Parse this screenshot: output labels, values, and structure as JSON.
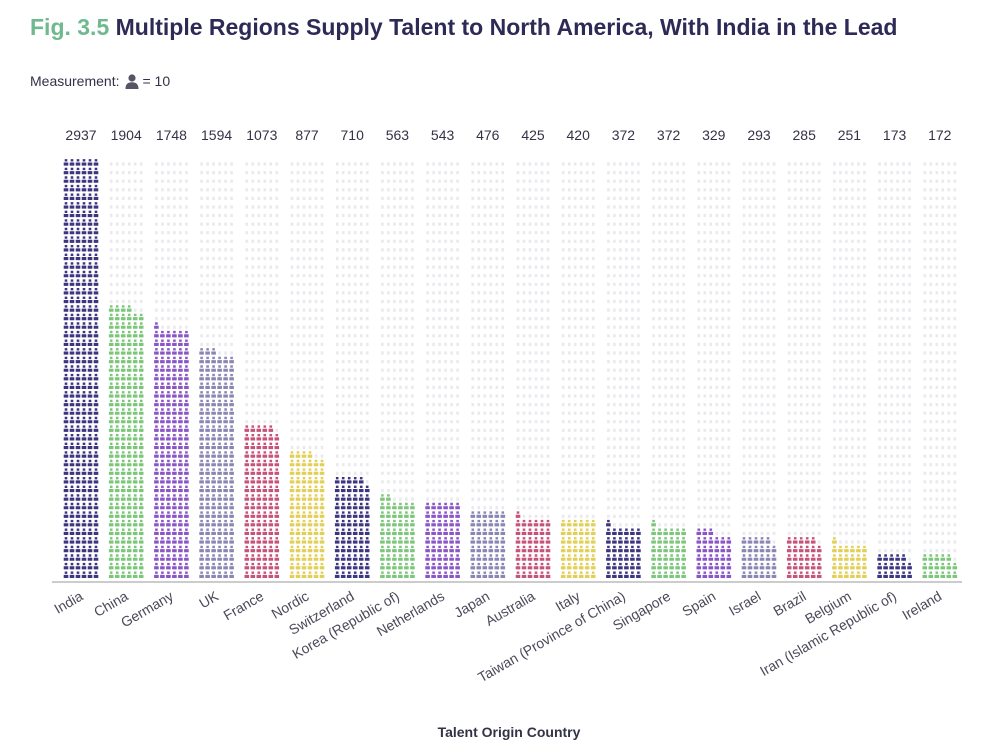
{
  "title": {
    "figure_label": "Fig. 3.5",
    "text": "Multiple Regions Supply Talent to North America, With India in the Lead"
  },
  "measurement": {
    "label": "Measurement:",
    "icon": "person-icon",
    "unit": "= 10"
  },
  "colors": {
    "india": "#3b3680",
    "china": "#7cc67a",
    "germany": "#8a55c7",
    "uk": "#8a86b3",
    "france": "#c6547a",
    "nordic": "#e2cf55",
    "empty": "#e9e9ee",
    "axis": "#999999",
    "text": "#333347"
  },
  "chart_data": {
    "type": "bar",
    "subtype": "pictogram",
    "title": "Multiple Regions Supply Talent to North America, With India in the Lead",
    "xlabel": "Talent Origin Country",
    "ylabel": "",
    "icon_unit": 10,
    "ylim": [
      0,
      2937
    ],
    "categories": [
      "India",
      "China",
      "Germany",
      "UK",
      "France",
      "Nordic",
      "Switzerland",
      "Korea (Republic of)",
      "Netherlands",
      "Japan",
      "Australia",
      "Italy",
      "Taiwan (Province of China)",
      "Singapore",
      "Spain",
      "Israel",
      "Brazil",
      "Belgium",
      "Iran (Islamic Republic of)",
      "Ireland"
    ],
    "values": [
      2937,
      1904,
      1748,
      1594,
      1073,
      877,
      710,
      563,
      543,
      476,
      425,
      420,
      372,
      372,
      329,
      293,
      285,
      251,
      173,
      172
    ],
    "value_labels": [
      "2937",
      "1904",
      "1748",
      "1594",
      "1073",
      "877",
      "710",
      "563",
      "543",
      "476",
      "425",
      "420",
      "372",
      "372",
      "329",
      "293",
      "285",
      "251",
      "173",
      "172"
    ],
    "bar_colors": [
      "#3b3680",
      "#7cc67a",
      "#8a55c7",
      "#8a86b3",
      "#c6547a",
      "#e2cf55",
      "#3b3680",
      "#7cc67a",
      "#8a55c7",
      "#8a86b3",
      "#c6547a",
      "#e2cf55",
      "#3b3680",
      "#7cc67a",
      "#8a55c7",
      "#8a86b3",
      "#c6547a",
      "#e2cf55",
      "#3b3680",
      "#7cc67a"
    ],
    "grid": false,
    "legend": "none"
  }
}
